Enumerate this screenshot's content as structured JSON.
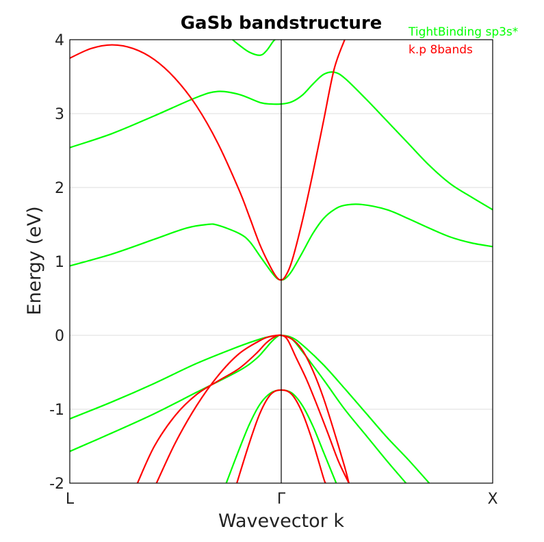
{
  "chart_data": {
    "type": "line",
    "title": "GaSb bandstructure",
    "xlabel": "Wavevector k",
    "ylabel": "Energy (eV)",
    "xlim": [
      -1,
      1
    ],
    "ylim": [
      -2,
      4
    ],
    "yticks": [
      "-2",
      "-1",
      "0",
      "1",
      "2",
      "3",
      "4"
    ],
    "ytick_values": [
      -2,
      -1,
      0,
      1,
      2,
      3,
      4
    ],
    "xtick_labels": [
      "L",
      "Γ",
      "X"
    ],
    "xtick_values": [
      -1,
      0,
      1
    ],
    "grid": true,
    "legend_position": "top-right",
    "colors": {
      "tb": "#00ff00",
      "kp": "#ff0000",
      "axis": "#000000",
      "grid": "#dddddd"
    },
    "series": [
      {
        "name": "TightBinding sp3s*",
        "color": "#00ff00",
        "bands": [
          [
            [
              -0.23,
              4.0
            ],
            [
              -0.2,
              3.93
            ],
            [
              -0.15,
              3.83
            ],
            [
              -0.1,
              3.79
            ],
            [
              -0.07,
              3.85
            ],
            [
              -0.04,
              3.97
            ],
            [
              -0.03,
              4.0
            ]
          ],
          [
            [
              -1,
              2.54
            ],
            [
              -0.8,
              2.73
            ],
            [
              -0.6,
              2.97
            ],
            [
              -0.4,
              3.22
            ],
            [
              -0.3,
              3.3
            ],
            [
              -0.2,
              3.26
            ],
            [
              -0.1,
              3.15
            ],
            [
              -0.05,
              3.13
            ],
            [
              0,
              3.13
            ],
            [
              0.05,
              3.16
            ],
            [
              0.1,
              3.25
            ],
            [
              0.15,
              3.4
            ],
            [
              0.2,
              3.53
            ],
            [
              0.25,
              3.56
            ],
            [
              0.3,
              3.48
            ],
            [
              0.4,
              3.2
            ],
            [
              0.5,
              2.9
            ],
            [
              0.6,
              2.6
            ],
            [
              0.7,
              2.3
            ],
            [
              0.8,
              2.05
            ],
            [
              0.9,
              1.87
            ],
            [
              1,
              1.7
            ]
          ],
          [
            [
              -1,
              0.94
            ],
            [
              -0.8,
              1.1
            ],
            [
              -0.6,
              1.3
            ],
            [
              -0.45,
              1.45
            ],
            [
              -0.35,
              1.5
            ],
            [
              -0.3,
              1.49
            ],
            [
              -0.2,
              1.38
            ],
            [
              -0.15,
              1.27
            ],
            [
              -0.1,
              1.07
            ],
            [
              -0.05,
              0.87
            ],
            [
              -0.02,
              0.77
            ],
            [
              0,
              0.75
            ],
            [
              0.02,
              0.77
            ],
            [
              0.05,
              0.87
            ],
            [
              0.1,
              1.12
            ],
            [
              0.15,
              1.38
            ],
            [
              0.2,
              1.58
            ],
            [
              0.25,
              1.7
            ],
            [
              0.3,
              1.76
            ],
            [
              0.38,
              1.77
            ],
            [
              0.5,
              1.7
            ],
            [
              0.6,
              1.58
            ],
            [
              0.7,
              1.45
            ],
            [
              0.8,
              1.33
            ],
            [
              0.9,
              1.25
            ],
            [
              1,
              1.2
            ]
          ],
          [
            [
              -1,
              -1.13
            ],
            [
              -0.8,
              -0.9
            ],
            [
              -0.6,
              -0.65
            ],
            [
              -0.4,
              -0.38
            ],
            [
              -0.2,
              -0.15
            ],
            [
              -0.1,
              -0.05
            ],
            [
              -0.05,
              -0.015
            ],
            [
              0,
              0
            ],
            [
              0.05,
              -0.03
            ],
            [
              0.1,
              -0.13
            ],
            [
              0.2,
              -0.4
            ],
            [
              0.3,
              -0.72
            ],
            [
              0.4,
              -1.05
            ],
            [
              0.5,
              -1.38
            ],
            [
              0.6,
              -1.68
            ],
            [
              0.7,
              -2.0
            ]
          ],
          [
            [
              -1,
              -1.57
            ],
            [
              -0.8,
              -1.32
            ],
            [
              -0.6,
              -1.06
            ],
            [
              -0.4,
              -0.77
            ],
            [
              -0.2,
              -0.48
            ],
            [
              -0.12,
              -0.32
            ],
            [
              -0.08,
              -0.2
            ],
            [
              -0.05,
              -0.1
            ],
            [
              -0.02,
              -0.02
            ],
            [
              0,
              0
            ],
            [
              0.05,
              -0.05
            ],
            [
              0.1,
              -0.22
            ],
            [
              0.2,
              -0.6
            ],
            [
              0.3,
              -1.0
            ],
            [
              0.4,
              -1.35
            ],
            [
              0.5,
              -1.7
            ],
            [
              0.59,
              -2.0
            ]
          ],
          [
            [
              -0.26,
              -2.0
            ],
            [
              -0.2,
              -1.55
            ],
            [
              -0.15,
              -1.2
            ],
            [
              -0.1,
              -0.93
            ],
            [
              -0.05,
              -0.78
            ],
            [
              0,
              -0.74
            ],
            [
              0.05,
              -0.78
            ],
            [
              0.1,
              -0.95
            ],
            [
              0.15,
              -1.23
            ],
            [
              0.2,
              -1.58
            ],
            [
              0.26,
              -2.0
            ]
          ]
        ]
      },
      {
        "name": "k.p 8bands",
        "color": "#ff0000",
        "bands": [
          [
            [
              -1,
              3.75
            ],
            [
              -0.9,
              3.88
            ],
            [
              -0.8,
              3.93
            ],
            [
              -0.7,
              3.88
            ],
            [
              -0.6,
              3.73
            ],
            [
              -0.5,
              3.47
            ],
            [
              -0.4,
              3.1
            ],
            [
              -0.3,
              2.6
            ],
            [
              -0.2,
              1.97
            ],
            [
              -0.15,
              1.6
            ],
            [
              -0.1,
              1.22
            ],
            [
              -0.05,
              0.92
            ],
            [
              -0.02,
              0.78
            ],
            [
              0,
              0.75
            ],
            [
              0.02,
              0.8
            ],
            [
              0.05,
              1.0
            ],
            [
              0.1,
              1.55
            ],
            [
              0.15,
              2.2
            ],
            [
              0.2,
              2.9
            ],
            [
              0.25,
              3.6
            ],
            [
              0.3,
              4.0
            ]
          ],
          [
            [
              -0.68,
              -2.0
            ],
            [
              -0.6,
              -1.5
            ],
            [
              -0.5,
              -1.08
            ],
            [
              -0.4,
              -0.8
            ],
            [
              -0.3,
              -0.62
            ],
            [
              -0.2,
              -0.45
            ],
            [
              -0.12,
              -0.25
            ],
            [
              -0.07,
              -0.1
            ],
            [
              -0.03,
              -0.02
            ],
            [
              0,
              0
            ],
            [
              0.03,
              -0.06
            ],
            [
              0.07,
              -0.3
            ],
            [
              0.12,
              -0.6
            ],
            [
              0.17,
              -0.95
            ],
            [
              0.22,
              -1.32
            ],
            [
              0.27,
              -1.7
            ],
            [
              0.32,
              -2.0
            ]
          ],
          [
            [
              -0.59,
              -2.0
            ],
            [
              -0.5,
              -1.45
            ],
            [
              -0.4,
              -0.95
            ],
            [
              -0.3,
              -0.55
            ],
            [
              -0.2,
              -0.25
            ],
            [
              -0.1,
              -0.07
            ],
            [
              -0.05,
              -0.015
            ],
            [
              0,
              0
            ],
            [
              0.05,
              -0.05
            ],
            [
              0.1,
              -0.2
            ],
            [
              0.15,
              -0.48
            ],
            [
              0.2,
              -0.85
            ],
            [
              0.25,
              -1.3
            ],
            [
              0.3,
              -1.78
            ],
            [
              0.32,
              -2.0
            ]
          ],
          [
            [
              -0.21,
              -2.0
            ],
            [
              -0.15,
              -1.45
            ],
            [
              -0.1,
              -1.05
            ],
            [
              -0.05,
              -0.8
            ],
            [
              0,
              -0.74
            ],
            [
              0.05,
              -0.8
            ],
            [
              0.1,
              -1.05
            ],
            [
              0.15,
              -1.45
            ],
            [
              0.2,
              -1.93
            ],
            [
              0.21,
              -2.0
            ]
          ]
        ]
      }
    ]
  }
}
